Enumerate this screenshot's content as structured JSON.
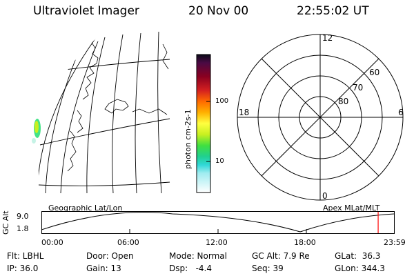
{
  "header": {
    "instrument": "Ultraviolet Imager",
    "date": "20 Nov 00",
    "time": "22:55:02 UT"
  },
  "colorbar": {
    "unit_label": "photon cm-2s-1",
    "ticks": [
      "100",
      "10"
    ]
  },
  "polar_plot": {
    "mlt_labels": {
      "top": "12",
      "left": "18",
      "right": "6",
      "bottom": "0"
    },
    "lat_labels": [
      "60",
      "70",
      "80"
    ]
  },
  "orbit_panel": {
    "left_title": "Geographic Lat/Lon",
    "right_title": "Apex MLat/MLT",
    "y_axis_label": "GC Alt",
    "y_ticks": [
      "9.0",
      "1.8"
    ],
    "time_ticks": [
      "00:00",
      "06:00",
      "12:00",
      "18:00",
      "23:59"
    ],
    "current_time_marker_fraction": 0.955
  },
  "status": {
    "filter": "Flt: LBHL",
    "ip": "IP: 36.0",
    "door": "Door: Open",
    "gain": "Gain: 13",
    "mode": "Mode: Normal",
    "dsp": "Dsp:   -4.4",
    "gc_alt": "GC Alt: 7.9 Re",
    "seq": "Seq: 39",
    "glat": "GLat:  36.3",
    "glon": "GLon: 344.3"
  }
}
